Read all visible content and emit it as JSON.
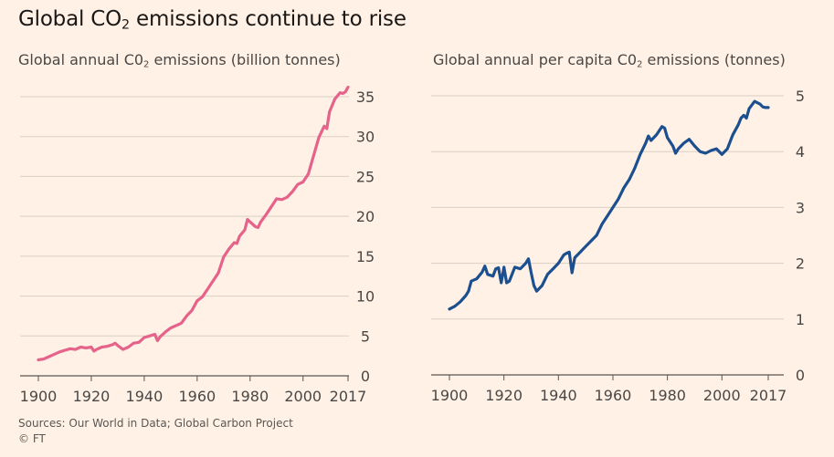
{
  "headline": {
    "text": "Global CO",
    "sub": "2",
    "rest": " emissions continue to rise"
  },
  "source": {
    "line1": "Sources: Our World in Data; Global Carbon Project",
    "line2": "© FT"
  },
  "colors": {
    "background": "#fff1e5",
    "pink": "#e5638a",
    "blue": "#1c4f8f",
    "grid": "#d9cfc4",
    "axis": "#5a5652"
  },
  "chart_data": [
    {
      "type": "line",
      "title": {
        "text": "Global annual C0",
        "sub": "2",
        "rest": " emissions (billion tonnes)"
      },
      "xlim": [
        1900,
        2017
      ],
      "ylim": [
        0,
        35
      ],
      "xticks": [
        1900,
        1920,
        1940,
        1960,
        1980,
        2000,
        2017
      ],
      "yticks": [
        0,
        5,
        10,
        15,
        20,
        25,
        30,
        35
      ],
      "grid": true,
      "series": [
        {
          "color": "#e5638a",
          "x": [
            1900,
            1902,
            1904,
            1906,
            1908,
            1910,
            1912,
            1914,
            1916,
            1918,
            1920,
            1921,
            1922,
            1924,
            1926,
            1928,
            1929,
            1930,
            1932,
            1934,
            1936,
            1938,
            1940,
            1942,
            1944,
            1945,
            1946,
            1948,
            1950,
            1952,
            1954,
            1956,
            1958,
            1960,
            1962,
            1964,
            1966,
            1968,
            1970,
            1972,
            1974,
            1975,
            1976,
            1978,
            1979,
            1980,
            1982,
            1983,
            1984,
            1986,
            1988,
            1990,
            1992,
            1994,
            1996,
            1998,
            2000,
            2002,
            2004,
            2006,
            2008,
            2009,
            2010,
            2012,
            2014,
            2015,
            2016,
            2017
          ],
          "y": [
            2.0,
            2.1,
            2.4,
            2.7,
            3.0,
            3.2,
            3.4,
            3.3,
            3.6,
            3.5,
            3.6,
            3.1,
            3.3,
            3.6,
            3.7,
            3.9,
            4.1,
            3.8,
            3.3,
            3.6,
            4.1,
            4.2,
            4.8,
            5.0,
            5.2,
            4.4,
            4.9,
            5.5,
            6.0,
            6.3,
            6.6,
            7.5,
            8.2,
            9.4,
            9.9,
            10.9,
            11.9,
            12.9,
            14.9,
            15.9,
            16.7,
            16.6,
            17.5,
            18.3,
            19.6,
            19.3,
            18.7,
            18.6,
            19.3,
            20.2,
            21.2,
            22.2,
            22.1,
            22.4,
            23.1,
            24.0,
            24.3,
            25.3,
            27.6,
            29.9,
            31.3,
            31.0,
            33.1,
            34.7,
            35.5,
            35.4,
            35.6,
            36.2
          ]
        }
      ]
    },
    {
      "type": "line",
      "title": {
        "text": "Global annual per capita C0",
        "sub": "2",
        "rest": " emissions (tonnes)"
      },
      "xlim": [
        1900,
        2017
      ],
      "ylim": [
        0,
        5
      ],
      "xticks": [
        1900,
        1920,
        1940,
        1960,
        1980,
        2000,
        2017
      ],
      "yticks": [
        0,
        1,
        2,
        3,
        4,
        5
      ],
      "grid": true,
      "series": [
        {
          "color": "#1c4f8f",
          "x": [
            1900,
            1902,
            1904,
            1906,
            1907,
            1908,
            1910,
            1912,
            1913,
            1914,
            1916,
            1917,
            1918,
            1919,
            1920,
            1921,
            1922,
            1924,
            1926,
            1928,
            1929,
            1930,
            1931,
            1932,
            1934,
            1936,
            1938,
            1940,
            1942,
            1943,
            1944,
            1945,
            1946,
            1948,
            1950,
            1952,
            1954,
            1956,
            1958,
            1960,
            1962,
            1964,
            1966,
            1968,
            1970,
            1972,
            1973,
            1974,
            1976,
            1978,
            1979,
            1980,
            1982,
            1983,
            1984,
            1986,
            1988,
            1990,
            1992,
            1994,
            1996,
            1998,
            2000,
            2002,
            2004,
            2006,
            2007,
            2008,
            2009,
            2010,
            2012,
            2014,
            2015,
            2016,
            2017
          ],
          "y": [
            1.18,
            1.23,
            1.31,
            1.42,
            1.5,
            1.68,
            1.72,
            1.84,
            1.95,
            1.8,
            1.77,
            1.9,
            1.92,
            1.65,
            1.93,
            1.65,
            1.68,
            1.93,
            1.9,
            2.0,
            2.08,
            1.83,
            1.6,
            1.5,
            1.6,
            1.8,
            1.9,
            2.0,
            2.15,
            2.18,
            2.2,
            1.83,
            2.1,
            2.2,
            2.3,
            2.4,
            2.5,
            2.7,
            2.85,
            3.0,
            3.15,
            3.35,
            3.5,
            3.7,
            3.95,
            4.15,
            4.28,
            4.2,
            4.3,
            4.45,
            4.42,
            4.25,
            4.1,
            3.97,
            4.05,
            4.15,
            4.22,
            4.1,
            4.0,
            3.97,
            4.02,
            4.05,
            3.95,
            4.05,
            4.3,
            4.48,
            4.6,
            4.65,
            4.6,
            4.77,
            4.9,
            4.85,
            4.8,
            4.79,
            4.79
          ]
        }
      ]
    }
  ]
}
